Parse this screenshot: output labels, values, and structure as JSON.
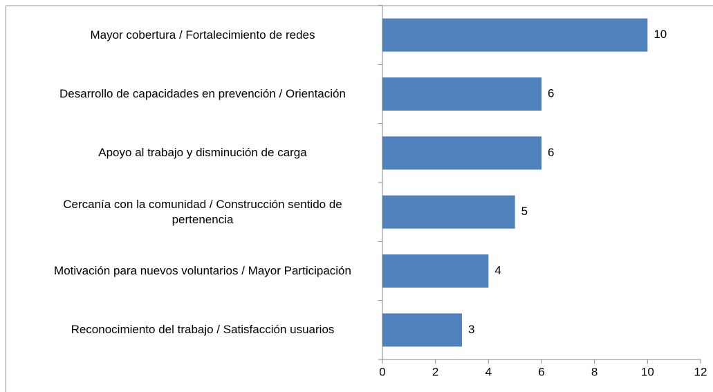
{
  "chart_data": {
    "type": "bar",
    "orientation": "horizontal",
    "categories": [
      "Mayor cobertura / Fortalecimiento de redes",
      "Desarrollo de capacidades en prevención / Orientación",
      "Apoyo al trabajo y disminución de carga",
      "Cercanía con la comunidad / Construcción sentido de pertenencia",
      "Motivación para nuevos voluntarios / Mayor Participación",
      "Reconocimiento del trabajo / Satisfacción usuarios"
    ],
    "values": [
      10,
      6,
      6,
      5,
      4,
      3
    ],
    "color": "#4f81bd",
    "xlim": [
      0,
      12
    ],
    "xticks": [
      0,
      2,
      4,
      6,
      8,
      10,
      12
    ],
    "grid": false
  }
}
